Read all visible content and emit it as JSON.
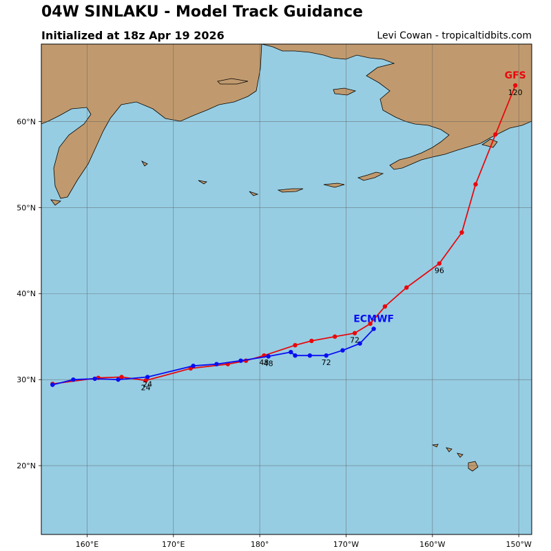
{
  "header": {
    "title": "04W SINLAKU - Model Track Guidance",
    "subtitle": "Initialized at 18z Apr 19 2026",
    "credit": "Levi Cowan - tropicaltidbits.com"
  },
  "colors": {
    "ocean": "#96cde3",
    "land": "#c09a6e",
    "gfs": "#e8080c",
    "ecmwf": "#0a0ef2",
    "grid": "#555555"
  },
  "chart_data": {
    "type": "map-track",
    "lon_ticks": [
      {
        "lon": 160,
        "label": "160°E"
      },
      {
        "lon": 170,
        "label": "170°E"
      },
      {
        "lon": 180,
        "label": "180°"
      },
      {
        "lon": 190,
        "label": "170°W"
      },
      {
        "lon": 200,
        "label": "160°W"
      },
      {
        "lon": 210,
        "label": "150°W"
      }
    ],
    "lat_ticks": [
      {
        "lat": 20,
        "label": "20°N"
      },
      {
        "lat": 30,
        "label": "30°N"
      },
      {
        "lat": 40,
        "label": "40°N"
      },
      {
        "lat": 50,
        "label": "50°N"
      },
      {
        "lat": 60,
        "label": "60°N"
      }
    ],
    "series": [
      {
        "name": "GFS",
        "points": [
          [
            156.0,
            29.5
          ],
          [
            161.3,
            30.2
          ],
          [
            164.0,
            30.3
          ],
          [
            166.8,
            29.9
          ],
          [
            172.0,
            31.3
          ],
          [
            176.3,
            31.8
          ],
          [
            178.4,
            32.2
          ],
          [
            180.5,
            32.8
          ],
          [
            184.1,
            34.0
          ],
          [
            186.0,
            34.5
          ],
          [
            188.7,
            35.0
          ],
          [
            191.0,
            35.4
          ],
          [
            192.8,
            36.5
          ],
          [
            194.5,
            38.5
          ],
          [
            197.0,
            40.7
          ],
          [
            200.8,
            43.5
          ],
          [
            203.4,
            47.1
          ],
          [
            205.0,
            52.7
          ],
          [
            207.3,
            58.5
          ],
          [
            209.6,
            64.2
          ]
        ],
        "hour_labels": [
          {
            "text": "24",
            "lon": 166.8,
            "lat": 29.9
          },
          {
            "text": "48",
            "lon": 180.5,
            "lat": 32.8
          },
          {
            "text": "72",
            "lon": 191.0,
            "lat": 35.4
          },
          {
            "text": "96",
            "lon": 200.8,
            "lat": 43.5
          },
          {
            "text": "120",
            "lon": 209.6,
            "lat": 64.2
          }
        ]
      },
      {
        "name": "ECMWF",
        "points": [
          [
            156.0,
            29.4
          ],
          [
            158.4,
            30.0
          ],
          [
            160.9,
            30.1
          ],
          [
            163.6,
            30.0
          ],
          [
            167.0,
            30.3
          ],
          [
            172.3,
            31.6
          ],
          [
            175.0,
            31.8
          ],
          [
            177.8,
            32.2
          ],
          [
            181.0,
            32.7
          ],
          [
            183.6,
            33.2
          ],
          [
            184.1,
            32.8
          ],
          [
            185.8,
            32.8
          ],
          [
            187.7,
            32.8
          ],
          [
            189.6,
            33.4
          ],
          [
            191.6,
            34.2
          ],
          [
            193.2,
            35.9
          ]
        ],
        "hour_labels": [
          {
            "text": "24",
            "lon": 167.0,
            "lat": 30.3
          },
          {
            "text": "48",
            "lon": 181.0,
            "lat": 32.7
          },
          {
            "text": "72",
            "lon": 187.7,
            "lat": 32.8
          }
        ]
      }
    ]
  }
}
